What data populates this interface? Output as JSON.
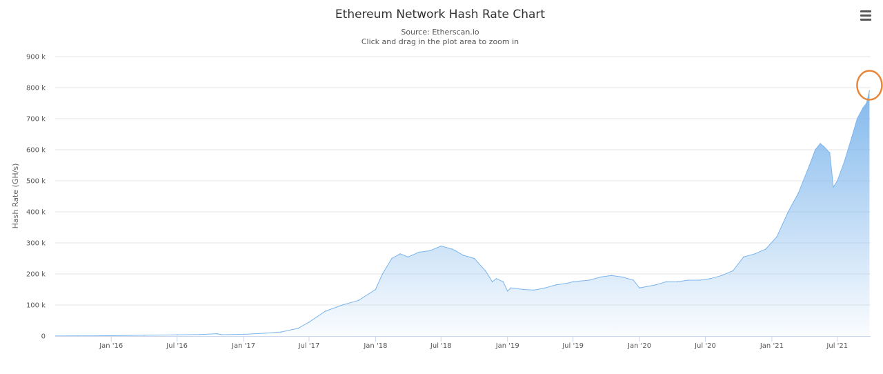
{
  "chart_data": {
    "type": "area",
    "title": "Ethereum Network Hash Rate Chart",
    "subtitle_lines": [
      "Source: Etherscan.io",
      "Click and drag in the plot area to zoom in"
    ],
    "ylabel": "Hash Rate (GH/s)",
    "xlabel": "",
    "ylim": [
      0,
      900000
    ],
    "y_ticks": [
      0,
      100000,
      200000,
      300000,
      400000,
      500000,
      600000,
      700000,
      800000,
      900000
    ],
    "y_tick_labels": [
      "0",
      "100 k",
      "200 k",
      "300 k",
      "400 k",
      "500 k",
      "600 k",
      "700 k",
      "800 k",
      "900 k"
    ],
    "xlim": [
      "2015-07-30",
      "2021-10-01"
    ],
    "x_ticks": [
      "2016-01-01",
      "2016-07-01",
      "2017-01-01",
      "2017-07-01",
      "2018-01-01",
      "2018-07-01",
      "2019-01-01",
      "2019-07-01",
      "2020-01-01",
      "2020-07-01",
      "2021-01-01",
      "2021-07-01"
    ],
    "x_tick_labels": [
      "Jan '16",
      "Jul '16",
      "Jan '17",
      "Jul '17",
      "Jan '18",
      "Jul '18",
      "Jan '19",
      "Jul '19",
      "Jan '20",
      "Jul '20",
      "Jan '21",
      "Jul '21"
    ],
    "grid": true,
    "legend": "none",
    "color": "#7cb5ec",
    "highlight_color": "#e8873a",
    "series": [
      {
        "x": [
          "2015-08-01",
          "2015-10-01",
          "2016-01-01",
          "2016-04-01",
          "2016-07-01",
          "2016-09-01",
          "2016-10-20",
          "2016-11-01",
          "2017-01-01",
          "2017-03-01",
          "2017-04-15",
          "2017-06-01",
          "2017-07-01",
          "2017-08-15",
          "2017-10-01",
          "2017-11-15",
          "2018-01-01",
          "2018-01-20",
          "2018-02-15",
          "2018-03-10",
          "2018-04-01",
          "2018-05-01",
          "2018-06-01",
          "2018-07-01",
          "2018-08-01",
          "2018-08-10",
          "2018-09-01",
          "2018-10-01",
          "2018-11-01",
          "2018-11-20",
          "2018-12-01",
          "2018-12-20",
          "2019-01-01",
          "2019-01-10",
          "2019-02-15",
          "2019-03-15",
          "2019-04-15",
          "2019-05-15",
          "2019-06-15",
          "2019-07-01",
          "2019-08-15",
          "2019-09-15",
          "2019-10-15",
          "2019-11-15",
          "2019-12-15",
          "2020-01-01",
          "2020-02-15",
          "2020-03-15",
          "2020-04-15",
          "2020-05-15",
          "2020-06-15",
          "2020-07-15",
          "2020-08-15",
          "2020-09-15",
          "2020-10-15",
          "2020-11-15",
          "2020-12-15",
          "2021-01-15",
          "2021-02-15",
          "2021-03-15",
          "2021-04-15",
          "2021-05-01",
          "2021-05-15",
          "2021-05-25",
          "2021-06-10",
          "2021-06-20",
          "2021-07-01",
          "2021-07-20",
          "2021-08-10",
          "2021-08-25",
          "2021-09-10",
          "2021-09-20",
          "2021-09-28"
        ],
        "values": [
          300,
          500,
          1200,
          2500,
          4000,
          5000,
          7500,
          4500,
          5500,
          9000,
          13000,
          25000,
          45000,
          80000,
          100000,
          115000,
          150000,
          200000,
          250000,
          265000,
          255000,
          270000,
          275000,
          290000,
          280000,
          275000,
          260000,
          250000,
          210000,
          175000,
          185000,
          175000,
          145000,
          155000,
          150000,
          148000,
          155000,
          165000,
          170000,
          175000,
          180000,
          190000,
          195000,
          190000,
          180000,
          155000,
          165000,
          175000,
          175000,
          180000,
          180000,
          185000,
          195000,
          210000,
          255000,
          265000,
          280000,
          320000,
          400000,
          460000,
          550000,
          600000,
          620000,
          610000,
          590000,
          480000,
          500000,
          560000,
          640000,
          700000,
          735000,
          750000,
          790000
        ]
      }
    ]
  },
  "ui": {
    "menu_icon": "hamburger-menu-icon"
  }
}
